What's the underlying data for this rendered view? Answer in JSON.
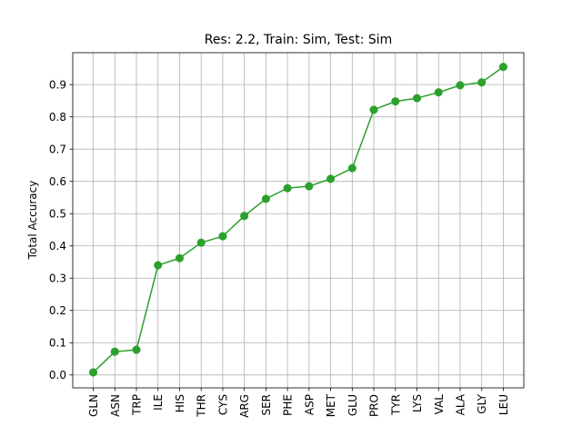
{
  "chart_data": {
    "type": "line",
    "title": "Res: 2.2,  Train:  Sim, Test: Sim",
    "xlabel": "",
    "ylabel": "Total Accuracy",
    "categories": [
      "GLN",
      "ASN",
      "TRP",
      "ILE",
      "HIS",
      "THR",
      "CYS",
      "ARG",
      "SER",
      "PHE",
      "ASP",
      "MET",
      "GLU",
      "PRO",
      "TYR",
      "LYS",
      "VAL",
      "ALA",
      "GLY",
      "LEU"
    ],
    "series": [
      {
        "values": [
          0.008,
          0.072,
          0.078,
          0.34,
          0.362,
          0.41,
          0.43,
          0.493,
          0.546,
          0.579,
          0.585,
          0.608,
          0.641,
          0.822,
          0.848,
          0.858,
          0.876,
          0.898,
          0.907,
          0.955
        ],
        "color": "#2ca02c",
        "marker": "circle"
      }
    ],
    "ylim": [
      -0.04,
      0.999
    ],
    "yticks": [
      0.0,
      0.1,
      0.2,
      0.3,
      0.4,
      0.5,
      0.6,
      0.7,
      0.8,
      0.9
    ],
    "ytick_labels": [
      "0.0",
      "0.1",
      "0.2",
      "0.3",
      "0.4",
      "0.5",
      "0.6",
      "0.7",
      "0.8",
      "0.9"
    ],
    "grid": true,
    "grid_color": "#b0b0b0",
    "legend": "none"
  }
}
